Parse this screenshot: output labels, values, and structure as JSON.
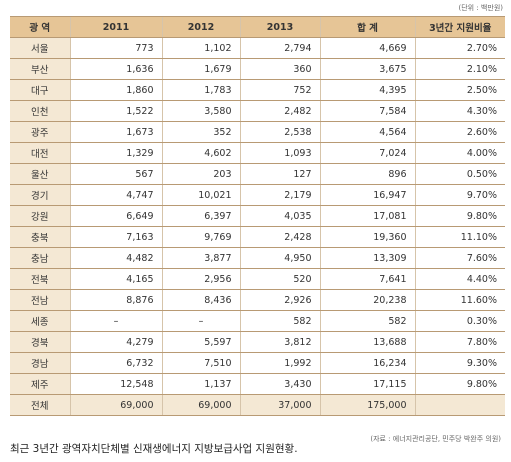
{
  "unit_note": "(단위 : 백만원)",
  "table": {
    "header": [
      "광 역",
      "2011",
      "2012",
      "2013",
      "합 계",
      "3년간 지원비율"
    ],
    "rows": [
      [
        "서울",
        "773",
        "1,102",
        "2,794",
        "4,669",
        "2.70%"
      ],
      [
        "부산",
        "1,636",
        "1,679",
        "360",
        "3,675",
        "2.10%"
      ],
      [
        "대구",
        "1,860",
        "1,783",
        "752",
        "4,395",
        "2.50%"
      ],
      [
        "인천",
        "1,522",
        "3,580",
        "2,482",
        "7,584",
        "4.30%"
      ],
      [
        "광주",
        "1,673",
        "352",
        "2,538",
        "4,564",
        "2.60%"
      ],
      [
        "대전",
        "1,329",
        "4,602",
        "1,093",
        "7,024",
        "4.00%"
      ],
      [
        "울산",
        "567",
        "203",
        "127",
        "896",
        "0.50%"
      ],
      [
        "경기",
        "4,747",
        "10,021",
        "2,179",
        "16,947",
        "9.70%"
      ],
      [
        "강원",
        "6,649",
        "6,397",
        "4,035",
        "17,081",
        "9.80%"
      ],
      [
        "충북",
        "7,163",
        "9,769",
        "2,428",
        "19,360",
        "11.10%"
      ],
      [
        "충남",
        "4,482",
        "3,877",
        "4,950",
        "13,309",
        "7.60%"
      ],
      [
        "전북",
        "4,165",
        "2,956",
        "520",
        "7,641",
        "4.40%"
      ],
      [
        "전남",
        "8,876",
        "8,436",
        "2,926",
        "20,238",
        "11.60%"
      ],
      [
        "세종",
        "–",
        "–",
        "582",
        "582",
        "0.30%"
      ],
      [
        "경북",
        "4,279",
        "5,597",
        "3,812",
        "13,688",
        "7.80%"
      ],
      [
        "경남",
        "6,732",
        "7,510",
        "1,992",
        "16,234",
        "9.30%"
      ],
      [
        "제주",
        "12,548",
        "1,137",
        "3,430",
        "17,115",
        "9.80%"
      ],
      [
        "전체",
        "69,000",
        "69,000",
        "37,000",
        "175,000",
        ""
      ]
    ]
  },
  "source": "(자료 : 에너지관리공단, 민주당 박완주 의원)",
  "caption": "최근 3년간 광역자치단체별 신재생에너지 지방보급사업 지원현황."
}
